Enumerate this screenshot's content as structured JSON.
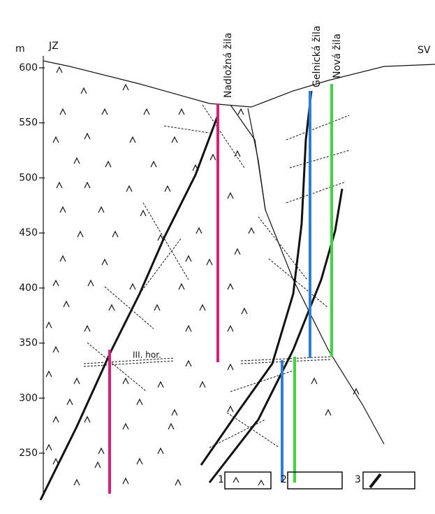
{
  "axis": {
    "unit": "m",
    "ticks": [
      600,
      550,
      500,
      450,
      400,
      350,
      300,
      250
    ]
  },
  "directions": {
    "left": "JZ",
    "right": "SV"
  },
  "veins": [
    {
      "label": "Nadložná žila"
    },
    {
      "label": "Gelnická žila"
    },
    {
      "label": "Nová žila"
    }
  ],
  "level_label": "III. hor.",
  "legend": [
    "1",
    "2",
    "3"
  ]
}
